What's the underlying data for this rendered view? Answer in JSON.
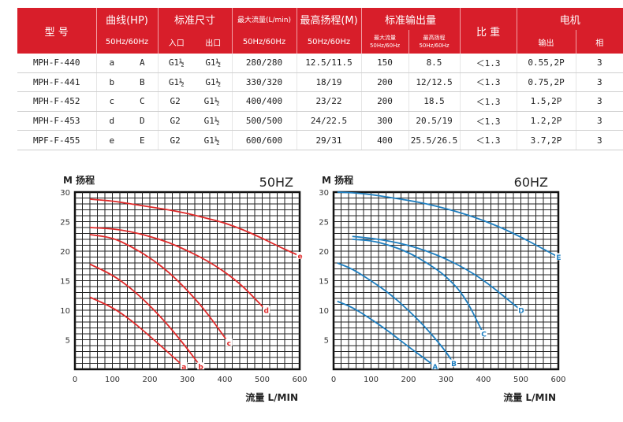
{
  "table": {
    "headers": {
      "model": "型 号",
      "curve": "曲线(HP)",
      "curve_sub": "50Hz/60Hz",
      "port": "标准尺寸",
      "port_in": "入口",
      "port_out": "出口",
      "max_flow": "最大流量(L/min)",
      "max_flow_sub": "50Hz/60Hz",
      "max_head": "最高扬程(M)",
      "max_head_sub": "50Hz/60Hz",
      "std_output": "标准输出量",
      "std_flow": "最大流量",
      "std_flow_sub": "50Hz/60Hz",
      "std_head": "最高扬程",
      "std_head_sub": "50Hz/60Hz",
      "gravity": "比 重",
      "motor": "电机",
      "motor_output": "输出",
      "motor_phase": "相"
    },
    "rows": [
      {
        "model": "MPH-F-440",
        "c50": "a",
        "c60": "A",
        "inlet": "G1½",
        "outlet": "G1½",
        "flow": "280/280",
        "head": "12.5/11.5",
        "sflow": "150",
        "shead": "8.5",
        "sg": "＜1.3",
        "out": "0.55,2P",
        "phase": "3"
      },
      {
        "model": "MPH-F-441",
        "c50": "b",
        "c60": "B",
        "inlet": "G1½",
        "outlet": "G1½",
        "flow": "330/320",
        "head": "18/19",
        "sflow": "200",
        "shead": "12/12.5",
        "sg": "＜1.3",
        "out": "0.75,2P",
        "phase": "3"
      },
      {
        "model": "MPH-F-452",
        "c50": "c",
        "c60": "C",
        "inlet": "G2",
        "outlet": "G1½",
        "flow": "400/400",
        "head": "23/22",
        "sflow": "200",
        "shead": "18.5",
        "sg": "＜1.3",
        "out": "1.5,2P",
        "phase": "3"
      },
      {
        "model": "MPH-F-453",
        "c50": "d",
        "c60": "D",
        "inlet": "G2",
        "outlet": "G1½",
        "flow": "500/500",
        "head": "24/22.5",
        "sflow": "300",
        "shead": "20.5/19",
        "sg": "＜1.3",
        "out": "1.2,2P",
        "phase": "3"
      },
      {
        "model": "MPF-F-455",
        "c50": "e",
        "c60": "E",
        "inlet": "G2",
        "outlet": "G1½",
        "flow": "600/600",
        "head": "29/31",
        "sflow": "400",
        "shead": "25.5/26.5",
        "sg": "＜1.3",
        "out": "3.7,2P",
        "phase": "3"
      }
    ]
  },
  "chart_data": [
    {
      "type": "line",
      "title": "50HZ",
      "ylabel": "M 扬程",
      "xlabel": "流量 L/MIN",
      "xlim": [
        0,
        600
      ],
      "ylim": [
        0,
        30
      ],
      "x_ticks": [
        "0",
        "100",
        "200",
        "300",
        "400",
        "500",
        "600"
      ],
      "y_ticks": [
        "5",
        "10",
        "15",
        "20",
        "25",
        "30"
      ],
      "grid": true,
      "color": "#e02a2a",
      "series": [
        {
          "name": "a",
          "x": [
            40,
            100,
            150,
            200,
            250,
            290
          ],
          "y": [
            12.2,
            10.5,
            8.3,
            5.6,
            2.8,
            0.5
          ]
        },
        {
          "name": "b",
          "x": [
            40,
            100,
            150,
            200,
            250,
            300,
            335
          ],
          "y": [
            17.8,
            16,
            13.7,
            10.8,
            7.4,
            3.5,
            0.5
          ]
        },
        {
          "name": "c",
          "x": [
            40,
            100,
            150,
            200,
            250,
            300,
            350,
            410
          ],
          "y": [
            22.8,
            22.3,
            20.8,
            18.9,
            16.5,
            13.4,
            9.8,
            4.5
          ]
        },
        {
          "name": "d",
          "x": [
            40,
            100,
            150,
            200,
            250,
            300,
            350,
            400,
            450,
            510
          ],
          "y": [
            24,
            23.8,
            23.3,
            22.5,
            21.5,
            20.1,
            18.5,
            16.5,
            14,
            10
          ]
        },
        {
          "name": "e",
          "x": [
            40,
            100,
            150,
            200,
            250,
            300,
            350,
            400,
            450,
            500,
            550,
            600
          ],
          "y": [
            28.8,
            28.5,
            28,
            27.5,
            27,
            26.4,
            25.6,
            24.8,
            23.6,
            22.2,
            20.6,
            19.2
          ]
        }
      ]
    },
    {
      "type": "line",
      "title": "60HZ",
      "ylabel": "M 扬程",
      "xlabel": "流量 L/MIN",
      "xlim": [
        0,
        600
      ],
      "ylim": [
        0,
        30
      ],
      "x_ticks": [
        "0",
        "100",
        "200",
        "300",
        "400",
        "500",
        "600"
      ],
      "y_ticks": [
        "5",
        "10",
        "15",
        "20",
        "25",
        "30"
      ],
      "grid": true,
      "color": "#1f7fc0",
      "series": [
        {
          "name": "A",
          "x": [
            10,
            50,
            100,
            150,
            200,
            250,
            270
          ],
          "y": [
            11.5,
            10.5,
            8.5,
            6.3,
            3.8,
            1.5,
            0.5
          ]
        },
        {
          "name": "B",
          "x": [
            10,
            50,
            100,
            150,
            200,
            250,
            300,
            320
          ],
          "y": [
            18,
            17,
            15,
            12.8,
            10,
            6.8,
            3,
            1
          ]
        },
        {
          "name": "C",
          "x": [
            50,
            100,
            150,
            200,
            250,
            300,
            350,
            400
          ],
          "y": [
            22,
            21.8,
            21,
            19.8,
            18,
            15.8,
            12.4,
            6
          ]
        },
        {
          "name": "D",
          "x": [
            50,
            100,
            150,
            200,
            250,
            300,
            350,
            400,
            450,
            500
          ],
          "y": [
            22.5,
            22.2,
            21.7,
            21,
            20,
            18.7,
            17.1,
            15.1,
            12.6,
            10
          ]
        },
        {
          "name": "E",
          "x": [
            10,
            50,
            100,
            150,
            200,
            250,
            300,
            350,
            400,
            450,
            500,
            550,
            600
          ],
          "y": [
            30,
            29.9,
            29.6,
            29.1,
            28.6,
            28,
            27.2,
            26.3,
            25.2,
            23.9,
            22.4,
            20.7,
            19
          ]
        }
      ]
    }
  ]
}
